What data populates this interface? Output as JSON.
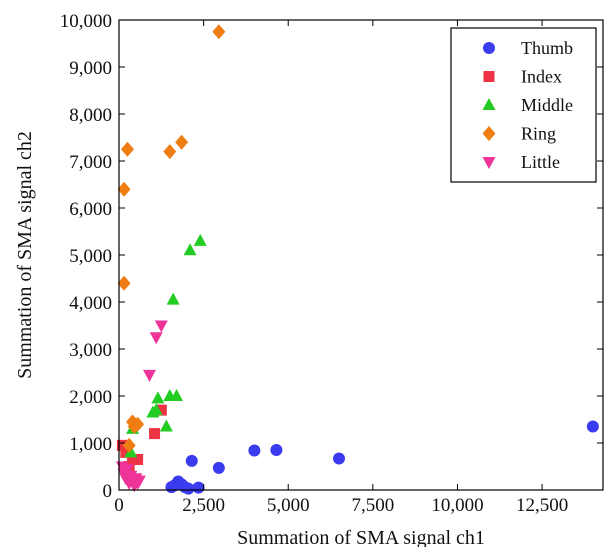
{
  "chart_data": {
    "type": "scatter",
    "xlabel": "Summation of SMA signal ch1",
    "ylabel": "Summation of SMA signal ch2",
    "xlim": [
      0,
      14300
    ],
    "ylim": [
      0,
      10000
    ],
    "x_ticks": [
      0,
      2500,
      5000,
      7500,
      10000,
      12500
    ],
    "x_tick_labels": [
      "0",
      "2,500",
      "5,000",
      "7,500",
      "10,000",
      "12,500"
    ],
    "y_ticks": [
      0,
      1000,
      2000,
      3000,
      4000,
      5000,
      6000,
      7000,
      8000,
      9000,
      10000
    ],
    "y_tick_labels": [
      "0",
      "1,000",
      "2,000",
      "3,000",
      "4,000",
      "5,000",
      "6,000",
      "7,000",
      "8,000",
      "9,000",
      "10,000"
    ],
    "grid": false,
    "legend_position": "top-right",
    "series": [
      {
        "name": "Thumb",
        "marker": "circle",
        "color": "#3b3bf0",
        "points": [
          [
            1550,
            60
          ],
          [
            1650,
            100
          ],
          [
            1750,
            180
          ],
          [
            1850,
            120
          ],
          [
            1950,
            60
          ],
          [
            2050,
            30
          ],
          [
            2150,
            620
          ],
          [
            2350,
            50
          ],
          [
            2950,
            470
          ],
          [
            4000,
            840
          ],
          [
            4650,
            850
          ],
          [
            6500,
            670
          ],
          [
            14000,
            1350
          ]
        ]
      },
      {
        "name": "Index",
        "marker": "square",
        "color": "#ee3344",
        "points": [
          [
            100,
            950
          ],
          [
            200,
            800
          ],
          [
            300,
            500
          ],
          [
            400,
            650
          ],
          [
            550,
            650
          ],
          [
            1050,
            1200
          ],
          [
            1250,
            1700
          ],
          [
            250,
            350
          ]
        ]
      },
      {
        "name": "Middle",
        "marker": "triangle-up",
        "color": "#22cc22",
        "points": [
          [
            400,
            1300
          ],
          [
            1000,
            1650
          ],
          [
            1100,
            1700
          ],
          [
            1150,
            1950
          ],
          [
            1400,
            1350
          ],
          [
            1500,
            2000
          ],
          [
            1700,
            2000
          ],
          [
            1600,
            4050
          ],
          [
            2100,
            5100
          ],
          [
            2400,
            5300
          ],
          [
            350,
            800
          ]
        ]
      },
      {
        "name": "Ring",
        "marker": "diamond",
        "color": "#f07c14",
        "points": [
          [
            150,
            4400
          ],
          [
            150,
            6400
          ],
          [
            250,
            7250
          ],
          [
            300,
            950
          ],
          [
            400,
            1450
          ],
          [
            450,
            1350
          ],
          [
            550,
            1400
          ],
          [
            1500,
            7200
          ],
          [
            1850,
            7400
          ],
          [
            2950,
            9750
          ]
        ]
      },
      {
        "name": "Little",
        "marker": "triangle-down",
        "color": "#ee3399",
        "points": [
          [
            100,
            500
          ],
          [
            150,
            350
          ],
          [
            200,
            250
          ],
          [
            250,
            450
          ],
          [
            300,
            150
          ],
          [
            350,
            300
          ],
          [
            400,
            200
          ],
          [
            450,
            100
          ],
          [
            500,
            250
          ],
          [
            550,
            150
          ],
          [
            600,
            200
          ],
          [
            900,
            2450
          ],
          [
            1100,
            3250
          ],
          [
            1250,
            3500
          ]
        ]
      }
    ]
  }
}
